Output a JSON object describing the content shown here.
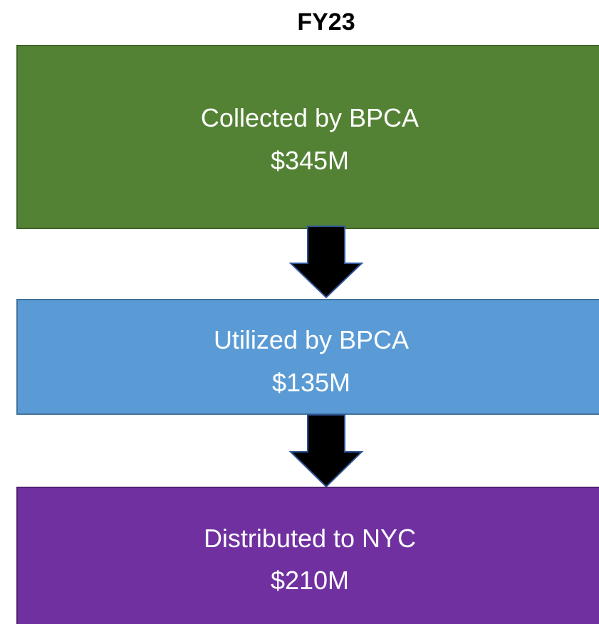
{
  "title": "FY23",
  "nodes": [
    {
      "label": "Collected by BPCA",
      "amount": "$345M"
    },
    {
      "label": "Utilized by BPCA",
      "amount": "$135M"
    },
    {
      "label": "Distributed to NYC",
      "amount": "$210M"
    }
  ]
}
